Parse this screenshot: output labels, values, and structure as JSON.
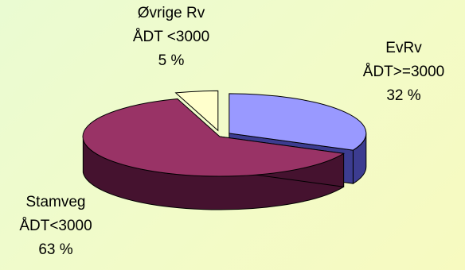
{
  "chart_data": {
    "type": "pie",
    "title": "",
    "three_d": true,
    "slices": [
      {
        "name": "EvRv",
        "sub": "ÅDT>=3000",
        "value": 32,
        "pct_label": "32 %",
        "color": "#9999ff",
        "side": "#3c3c90",
        "exploded": true
      },
      {
        "name": "Stamveg",
        "sub": "ÅDT<3000",
        "value": 63,
        "pct_label": "63 %",
        "color": "#993366",
        "side": "#45122f",
        "exploded": false
      },
      {
        "name": "Øvrige Rv",
        "sub": "ÅDT <3000",
        "value": 5,
        "pct_label": "5 %",
        "color": "#ffffcc",
        "side": "#8f8f60",
        "exploded": true
      }
    ]
  }
}
